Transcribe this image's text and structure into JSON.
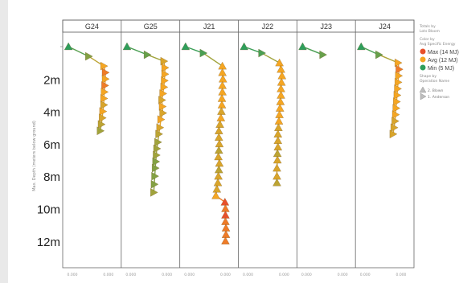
{
  "chart_data": {
    "type": "scatter",
    "panels": [
      "G24",
      "G25",
      "J21",
      "J22",
      "J23",
      "J24"
    ],
    "y_label": "Max. Depth (meters below ground)",
    "y_ticks": [
      "2m",
      "4m",
      "6m",
      "8m",
      "10m",
      "12m"
    ],
    "ylim": [
      0,
      13.5
    ],
    "x_ticks": [
      "0.000",
      "0.000",
      "0.000"
    ],
    "x_label": "",
    "grid": false,
    "color_scale": {
      "max": {
        "label": "Max (14 MJ)",
        "color": "#e8502a"
      },
      "avg": {
        "label": "Avg (12 MJ)",
        "color": "#f5a623"
      },
      "min": {
        "label": "Min (5 MJ)",
        "color": "#2e9e5b"
      }
    },
    "legend": {
      "title_lines": [
        "Totals by",
        "Lots Bloom"
      ],
      "color_title_lines": [
        "Color by",
        "Avg Specific Energy"
      ],
      "shape_title_lines": [
        "Shape by",
        "Operation Name"
      ],
      "shape_items": [
        "2. Blown",
        "1. Anderson"
      ],
      "placement": "right"
    },
    "series": [
      {
        "name": "G24",
        "points": [
          [
            0.05,
            0.0,
            5
          ],
          [
            0.45,
            0.6,
            8
          ],
          [
            0.75,
            1.2,
            12
          ],
          [
            0.78,
            1.6,
            13
          ],
          [
            0.78,
            2.0,
            12
          ],
          [
            0.77,
            2.4,
            13
          ],
          [
            0.76,
            2.8,
            12
          ],
          [
            0.75,
            3.2,
            12
          ],
          [
            0.75,
            3.6,
            11
          ],
          [
            0.73,
            4.0,
            12
          ],
          [
            0.72,
            4.4,
            11
          ],
          [
            0.7,
            4.8,
            10
          ],
          [
            0.68,
            5.2,
            9
          ]
        ]
      },
      {
        "name": "G25",
        "points": [
          [
            0.05,
            0.0,
            5
          ],
          [
            0.45,
            0.5,
            7
          ],
          [
            0.78,
            0.9,
            11
          ],
          [
            0.8,
            1.3,
            12
          ],
          [
            0.8,
            1.7,
            12
          ],
          [
            0.79,
            2.1,
            12
          ],
          [
            0.78,
            2.5,
            12
          ],
          [
            0.76,
            2.9,
            12
          ],
          [
            0.74,
            3.3,
            11
          ],
          [
            0.75,
            3.7,
            12
          ],
          [
            0.76,
            4.1,
            11
          ],
          [
            0.72,
            4.5,
            12
          ],
          [
            0.7,
            5.0,
            11
          ],
          [
            0.68,
            5.4,
            10
          ],
          [
            0.66,
            5.9,
            9
          ],
          [
            0.64,
            6.3,
            9
          ],
          [
            0.63,
            6.7,
            9
          ],
          [
            0.62,
            7.1,
            8
          ],
          [
            0.61,
            7.5,
            8
          ],
          [
            0.6,
            8.0,
            8
          ],
          [
            0.59,
            8.5,
            8
          ],
          [
            0.58,
            9.0,
            9
          ]
        ]
      },
      {
        "name": "J21",
        "points": [
          [
            0.05,
            0.0,
            5
          ],
          [
            0.4,
            0.4,
            6
          ],
          [
            0.78,
            1.2,
            12
          ],
          [
            0.78,
            1.6,
            12
          ],
          [
            0.79,
            2.0,
            12
          ],
          [
            0.78,
            2.4,
            12
          ],
          [
            0.78,
            2.8,
            12
          ],
          [
            0.77,
            3.2,
            12
          ],
          [
            0.77,
            3.6,
            12
          ],
          [
            0.76,
            4.0,
            11
          ],
          [
            0.75,
            4.4,
            12
          ],
          [
            0.73,
            4.8,
            11
          ],
          [
            0.71,
            5.2,
            11
          ],
          [
            0.71,
            5.6,
            11
          ],
          [
            0.72,
            6.0,
            11
          ],
          [
            0.71,
            6.4,
            10
          ],
          [
            0.7,
            6.8,
            11
          ],
          [
            0.72,
            7.2,
            11
          ],
          [
            0.71,
            7.6,
            10
          ],
          [
            0.7,
            8.0,
            11
          ],
          [
            0.69,
            8.4,
            11
          ],
          [
            0.67,
            8.8,
            11
          ],
          [
            0.65,
            9.2,
            12
          ],
          [
            0.83,
            9.6,
            14
          ],
          [
            0.84,
            10.0,
            13
          ],
          [
            0.84,
            10.4,
            14
          ],
          [
            0.84,
            10.8,
            13
          ],
          [
            0.85,
            11.2,
            13
          ],
          [
            0.85,
            11.6,
            13
          ],
          [
            0.84,
            12.0,
            13
          ]
        ]
      },
      {
        "name": "J22",
        "points": [
          [
            0.05,
            0.0,
            5
          ],
          [
            0.4,
            0.4,
            6
          ],
          [
            0.75,
            1.0,
            12
          ],
          [
            0.78,
            1.4,
            12
          ],
          [
            0.8,
            1.8,
            12
          ],
          [
            0.79,
            2.2,
            12
          ],
          [
            0.78,
            2.6,
            12
          ],
          [
            0.78,
            3.0,
            12
          ],
          [
            0.77,
            3.4,
            12
          ],
          [
            0.76,
            3.8,
            12
          ],
          [
            0.75,
            4.2,
            12
          ],
          [
            0.74,
            4.6,
            12
          ],
          [
            0.73,
            5.0,
            11
          ],
          [
            0.72,
            5.4,
            11
          ],
          [
            0.72,
            5.8,
            11
          ],
          [
            0.72,
            6.2,
            11
          ],
          [
            0.71,
            6.6,
            10
          ],
          [
            0.71,
            7.0,
            11
          ],
          [
            0.7,
            7.5,
            11
          ],
          [
            0.7,
            8.0,
            11
          ],
          [
            0.7,
            8.4,
            10
          ]
        ]
      },
      {
        "name": "J23",
        "points": [
          [
            0.05,
            0.0,
            5
          ],
          [
            0.45,
            0.5,
            7
          ]
        ]
      },
      {
        "name": "J24",
        "points": [
          [
            0.05,
            0.0,
            5
          ],
          [
            0.4,
            0.5,
            7
          ],
          [
            0.78,
            1.0,
            12
          ],
          [
            0.8,
            1.4,
            13
          ],
          [
            0.79,
            1.8,
            12
          ],
          [
            0.78,
            2.2,
            12
          ],
          [
            0.77,
            2.6,
            12
          ],
          [
            0.76,
            3.0,
            12
          ],
          [
            0.75,
            3.4,
            12
          ],
          [
            0.74,
            3.8,
            12
          ],
          [
            0.73,
            4.2,
            12
          ],
          [
            0.72,
            4.6,
            11
          ],
          [
            0.7,
            5.0,
            11
          ],
          [
            0.68,
            5.4,
            11
          ]
        ]
      }
    ]
  }
}
